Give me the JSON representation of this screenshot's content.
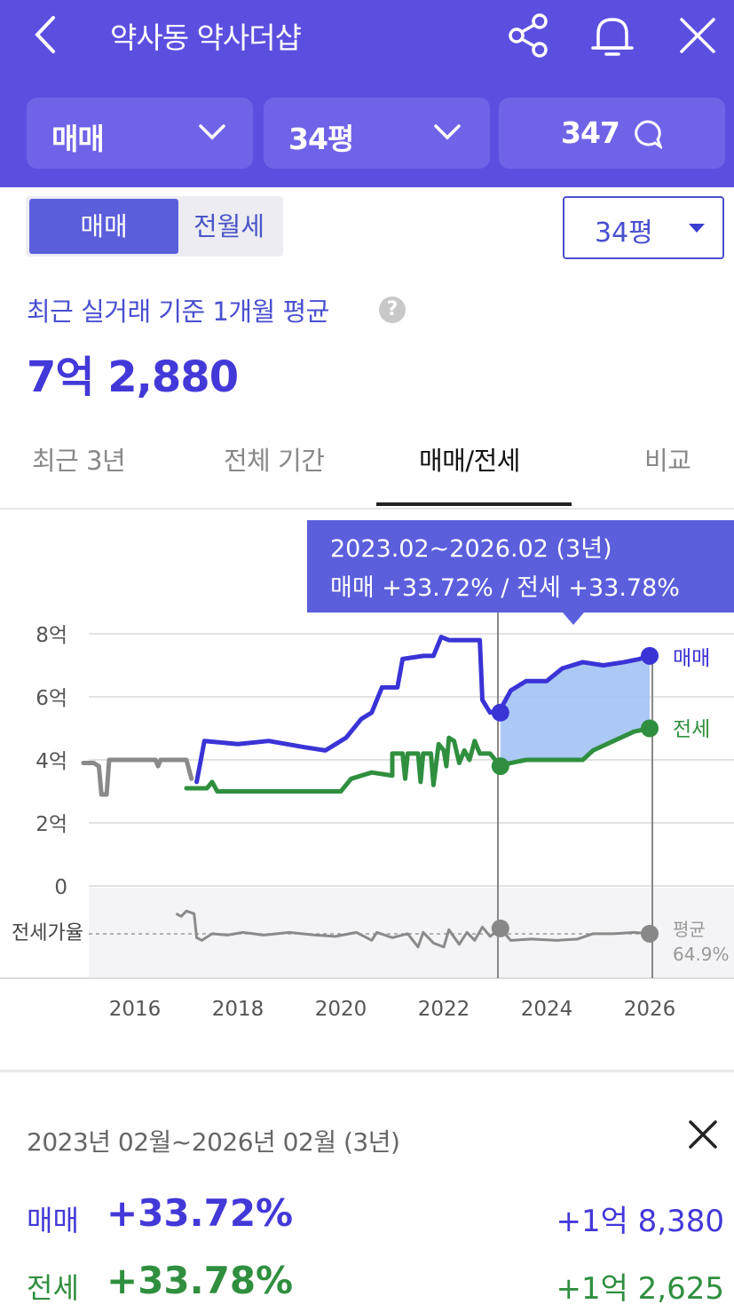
{
  "header": {
    "title": "약사동 약사더샵",
    "filters": {
      "deal_type": "매매",
      "size": "34평",
      "comments": "347"
    }
  },
  "segment": {
    "sale": "매매",
    "rent": "전월세"
  },
  "size_dropdown": "34평",
  "summary": {
    "label": "최근 실거래 기준 1개월 평균",
    "help": "?",
    "price": "7억 2,880"
  },
  "tabs": [
    {
      "label": "최근 3년"
    },
    {
      "label": "전체 기간"
    },
    {
      "label": "매매/전세",
      "active": true
    },
    {
      "label": "비교"
    }
  ],
  "tooltip": {
    "period": "2023.02~2026.02 (3년)",
    "change": "매매 +33.72%  /  전세 +33.78%"
  },
  "chart_data": {
    "type": "line",
    "y_ticks": [
      "8억",
      "6억",
      "4억",
      "2억",
      "0"
    ],
    "x_ticks": [
      "2016",
      "2018",
      "2020",
      "2022",
      "2024",
      "2026"
    ],
    "ylim": [
      0,
      8
    ],
    "ratio_label": "전세가율",
    "avg_label": "평균",
    "avg_value": "64.9%",
    "series": [
      {
        "name": "매매",
        "color": "#3a33d6",
        "points": [
          [
            2017.2,
            3.3
          ],
          [
            2017.35,
            4.6
          ],
          [
            2018.0,
            4.5
          ],
          [
            2018.6,
            4.6
          ],
          [
            2019.3,
            4.4
          ],
          [
            2019.7,
            4.3
          ],
          [
            2020.1,
            4.7
          ],
          [
            2020.4,
            5.3
          ],
          [
            2020.6,
            5.5
          ],
          [
            2020.8,
            6.3
          ],
          [
            2021.1,
            6.3
          ],
          [
            2021.2,
            7.2
          ],
          [
            2021.6,
            7.3
          ],
          [
            2021.8,
            7.3
          ],
          [
            2021.95,
            7.9
          ],
          [
            2022.1,
            7.8
          ],
          [
            2022.7,
            7.8
          ],
          [
            2022.75,
            5.9
          ],
          [
            2022.9,
            5.5
          ],
          [
            2023.1,
            5.6
          ],
          [
            2023.3,
            6.2
          ],
          [
            2023.6,
            6.5
          ],
          [
            2024.0,
            6.5
          ],
          [
            2024.3,
            6.9
          ],
          [
            2024.7,
            7.1
          ],
          [
            2025.1,
            7.0
          ],
          [
            2025.5,
            7.1
          ],
          [
            2025.8,
            7.2
          ],
          [
            2026.0,
            7.3
          ]
        ]
      },
      {
        "name": "전세",
        "color": "#2f8f3f",
        "points": [
          [
            2017.0,
            3.1
          ],
          [
            2017.4,
            3.1
          ],
          [
            2017.5,
            3.3
          ],
          [
            2017.6,
            3.0
          ],
          [
            2018.3,
            3.0
          ],
          [
            2018.9,
            3.0
          ],
          [
            2019.6,
            3.0
          ],
          [
            2020.0,
            3.0
          ],
          [
            2020.2,
            3.4
          ],
          [
            2020.6,
            3.6
          ],
          [
            2021.0,
            3.5
          ],
          [
            2021.0,
            4.2
          ],
          [
            2021.2,
            4.2
          ],
          [
            2021.25,
            3.4
          ],
          [
            2021.3,
            4.2
          ],
          [
            2021.5,
            4.2
          ],
          [
            2021.55,
            3.3
          ],
          [
            2021.6,
            4.2
          ],
          [
            2021.75,
            4.2
          ],
          [
            2021.8,
            3.2
          ],
          [
            2021.9,
            4.5
          ],
          [
            2022.0,
            4.3
          ],
          [
            2022.05,
            3.8
          ],
          [
            2022.1,
            4.7
          ],
          [
            2022.2,
            4.6
          ],
          [
            2022.3,
            3.9
          ],
          [
            2022.4,
            4.3
          ],
          [
            2022.5,
            4.0
          ],
          [
            2022.6,
            4.6
          ],
          [
            2022.7,
            4.2
          ],
          [
            2022.9,
            4.2
          ],
          [
            2023.1,
            3.8
          ],
          [
            2023.3,
            3.9
          ],
          [
            2023.6,
            4.0
          ],
          [
            2024.2,
            4.0
          ],
          [
            2024.7,
            4.0
          ],
          [
            2024.9,
            4.3
          ],
          [
            2025.3,
            4.6
          ],
          [
            2025.7,
            4.9
          ],
          [
            2026.0,
            5.0
          ]
        ]
      },
      {
        "name": "past",
        "color": "#8a8a8a",
        "points": [
          [
            2015.0,
            3.9
          ],
          [
            2015.2,
            3.9
          ],
          [
            2015.3,
            3.8
          ],
          [
            2015.35,
            2.9
          ],
          [
            2015.45,
            2.9
          ],
          [
            2015.5,
            4.0
          ],
          [
            2016.4,
            4.0
          ],
          [
            2016.45,
            3.8
          ],
          [
            2016.5,
            4.0
          ],
          [
            2016.7,
            4.0
          ],
          [
            2017.0,
            4.0
          ],
          [
            2017.1,
            3.4
          ]
        ]
      }
    ],
    "ratio_series": [
      [
        2016.8,
        80
      ],
      [
        2016.9,
        78
      ],
      [
        2017.0,
        82
      ],
      [
        2017.15,
        80
      ],
      [
        2017.2,
        62
      ],
      [
        2017.3,
        60
      ],
      [
        2017.5,
        65
      ],
      [
        2017.8,
        64
      ],
      [
        2018.1,
        66
      ],
      [
        2018.5,
        64
      ],
      [
        2019.0,
        66
      ],
      [
        2019.5,
        64
      ],
      [
        2019.9,
        63
      ],
      [
        2020.3,
        66
      ],
      [
        2020.6,
        60
      ],
      [
        2020.7,
        66
      ],
      [
        2021.0,
        62
      ],
      [
        2021.3,
        65
      ],
      [
        2021.5,
        55
      ],
      [
        2021.6,
        66
      ],
      [
        2021.8,
        58
      ],
      [
        2022.0,
        55
      ],
      [
        2022.1,
        68
      ],
      [
        2022.3,
        57
      ],
      [
        2022.45,
        66
      ],
      [
        2022.6,
        60
      ],
      [
        2022.75,
        70
      ],
      [
        2022.9,
        63
      ],
      [
        2023.1,
        69
      ],
      [
        2023.3,
        60
      ],
      [
        2023.7,
        61
      ],
      [
        2024.2,
        60
      ],
      [
        2024.6,
        61
      ],
      [
        2024.9,
        65
      ],
      [
        2025.3,
        65
      ],
      [
        2025.7,
        66
      ],
      [
        2026.0,
        65
      ]
    ]
  },
  "detail": {
    "range": "2023년 02월~2026년 02월 (3년)",
    "rows": [
      {
        "label": "매매",
        "pct": "+33.72%",
        "amount": "+1억 8,380"
      },
      {
        "label": "전세",
        "pct": "+33.78%",
        "amount": "+1억 2,625"
      }
    ]
  }
}
